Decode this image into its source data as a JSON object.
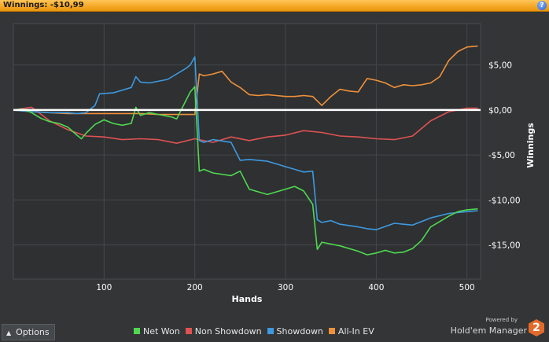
{
  "header": {
    "title_label": "Winnings:",
    "title_value": "-$10,99",
    "help_glyph": "?"
  },
  "options": {
    "label": "Options"
  },
  "branding": {
    "powered_by": "Powered by",
    "product_name": "Hold'em Manager",
    "logo_text": "2"
  },
  "colors": {
    "net_won": "#4fd94f",
    "non_showdown": "#e05252",
    "showdown": "#3e9ae0",
    "all_in_ev": "#f0913a",
    "zero_line": "#ffffff"
  },
  "chart_data": {
    "type": "line",
    "xlabel": "Hands",
    "ylabel": "Winnings",
    "xlim": [
      0,
      515
    ],
    "ylim": [
      -18.8,
      9.6
    ],
    "x_ticks": [
      100,
      200,
      300,
      400,
      500
    ],
    "y_ticks": [
      5,
      0,
      -5,
      -10,
      -15
    ],
    "y_tick_labels": [
      "$5,00",
      "$0,00",
      "-$5,00",
      "-$10,00",
      "-$15,00"
    ],
    "grid": true,
    "legend_position": "bottom",
    "series": [
      {
        "name": "Net Won",
        "x": [
          0,
          10,
          20,
          30,
          40,
          50,
          60,
          70,
          75,
          80,
          90,
          100,
          110,
          120,
          130,
          135,
          140,
          150,
          160,
          170,
          175,
          180,
          190,
          195,
          200,
          205,
          210,
          220,
          240,
          250,
          260,
          270,
          280,
          290,
          300,
          310,
          320,
          330,
          335,
          340,
          350,
          360,
          380,
          390,
          400,
          410,
          420,
          430,
          440,
          450,
          460,
          470,
          480,
          490,
          500,
          512
        ],
        "y": [
          0,
          0.1,
          -0.3,
          -0.9,
          -1.3,
          -1.5,
          -1.9,
          -2.8,
          -3.2,
          -2.6,
          -1.6,
          -1.1,
          -1.5,
          -1.7,
          -1.5,
          0.3,
          -0.6,
          -0.3,
          -0.5,
          -0.7,
          -0.8,
          -1.0,
          1.0,
          2.0,
          2.6,
          -6.8,
          -6.6,
          -7.0,
          -7.3,
          -6.8,
          -8.8,
          -9.1,
          -9.4,
          -9.1,
          -8.8,
          -8.5,
          -9.0,
          -10.5,
          -15.5,
          -14.7,
          -14.9,
          -15.1,
          -15.7,
          -16.1,
          -15.9,
          -15.6,
          -15.9,
          -15.8,
          -15.4,
          -14.5,
          -13.0,
          -12.4,
          -11.8,
          -11.3,
          -11.1,
          -11.0
        ]
      },
      {
        "name": "Non Showdown",
        "x": [
          0,
          20,
          40,
          60,
          80,
          100,
          120,
          140,
          160,
          180,
          200,
          220,
          240,
          260,
          280,
          300,
          320,
          340,
          360,
          380,
          400,
          420,
          440,
          460,
          480,
          500,
          512
        ],
        "y": [
          0,
          0.3,
          -1.2,
          -2.2,
          -2.9,
          -3.0,
          -3.3,
          -3.2,
          -3.3,
          -3.7,
          -3.2,
          -3.6,
          -3.0,
          -3.4,
          -3.0,
          -2.8,
          -2.3,
          -2.5,
          -2.9,
          -3.0,
          -3.2,
          -3.3,
          -2.9,
          -1.2,
          -0.2,
          0.2,
          0.2
        ]
      },
      {
        "name": "Showdown",
        "x": [
          0,
          20,
          40,
          60,
          70,
          80,
          90,
          95,
          110,
          130,
          135,
          140,
          150,
          170,
          190,
          195,
          200,
          205,
          210,
          220,
          240,
          250,
          260,
          270,
          280,
          290,
          300,
          320,
          330,
          335,
          340,
          350,
          360,
          380,
          390,
          400,
          420,
          440,
          460,
          480,
          500,
          512
        ],
        "y": [
          0,
          -0.2,
          -0.3,
          -0.3,
          -0.4,
          -0.3,
          0.5,
          1.8,
          1.9,
          2.5,
          3.7,
          3.1,
          3.0,
          3.4,
          4.6,
          5.0,
          5.9,
          -3.4,
          -3.6,
          -3.3,
          -3.6,
          -5.6,
          -5.5,
          -5.6,
          -5.7,
          -6.0,
          -6.3,
          -6.9,
          -6.8,
          -12.2,
          -12.5,
          -12.3,
          -12.7,
          -13.0,
          -13.2,
          -13.3,
          -12.6,
          -12.8,
          -12.0,
          -11.5,
          -11.3,
          -11.2
        ]
      },
      {
        "name": "All-In EV",
        "x": [
          0,
          20,
          40,
          60,
          80,
          100,
          120,
          140,
          160,
          180,
          200,
          205,
          210,
          220,
          230,
          240,
          250,
          260,
          270,
          280,
          290,
          300,
          310,
          320,
          330,
          340,
          350,
          360,
          370,
          380,
          390,
          400,
          410,
          420,
          430,
          440,
          450,
          460,
          470,
          480,
          490,
          500,
          512
        ],
        "y": [
          0,
          -0.2,
          -0.3,
          -0.4,
          -0.4,
          -0.4,
          -0.4,
          -0.4,
          -0.5,
          -0.5,
          -0.5,
          4.0,
          3.8,
          4.0,
          4.3,
          3.1,
          2.5,
          1.7,
          1.6,
          1.7,
          1.6,
          1.5,
          1.5,
          1.6,
          1.5,
          0.5,
          1.5,
          2.3,
          2.1,
          2.0,
          3.5,
          3.3,
          3.0,
          2.5,
          2.8,
          2.7,
          2.8,
          3.0,
          3.7,
          5.5,
          6.5,
          7.0,
          7.1
        ]
      }
    ]
  }
}
